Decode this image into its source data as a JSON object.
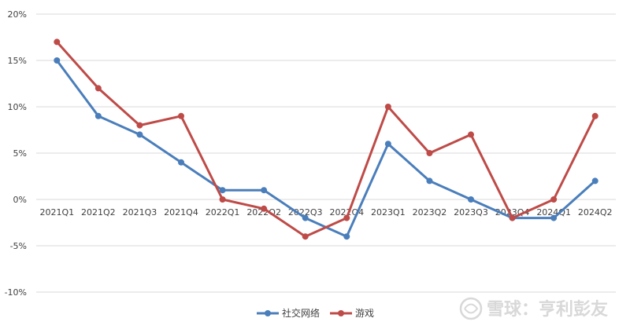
{
  "chart_data": {
    "type": "line",
    "title": "",
    "xlabel": "",
    "ylabel": "",
    "categories": [
      "2021Q1",
      "2021Q2",
      "2021Q3",
      "2021Q4",
      "2022Q1",
      "2022Q2",
      "2022Q3",
      "2022Q4",
      "2023Q1",
      "2023Q2",
      "2023Q3",
      "2023Q4",
      "2024Q1",
      "2024Q2"
    ],
    "series": [
      {
        "name": "社交网络",
        "color": "#4a7ebb",
        "values": [
          15,
          9,
          7,
          4,
          1,
          1,
          -2,
          -4,
          6,
          2,
          0,
          -2,
          -2,
          2
        ]
      },
      {
        "name": "游戏",
        "color": "#be4b48",
        "values": [
          17,
          12,
          8,
          9,
          0,
          -1,
          -4,
          -2,
          10,
          5,
          7,
          -2,
          0,
          9
        ]
      }
    ],
    "ylim": [
      -10,
      20
    ],
    "yticks": [
      20,
      15,
      10,
      5,
      0,
      -5,
      -10
    ],
    "ytick_labels": [
      "20%",
      "15%",
      "10%",
      "5%",
      "0%",
      "-5%",
      "-10%"
    ],
    "grid": true,
    "legend_position": "bottom-center"
  },
  "watermark": {
    "text": "雪球：亨利彭友"
  }
}
